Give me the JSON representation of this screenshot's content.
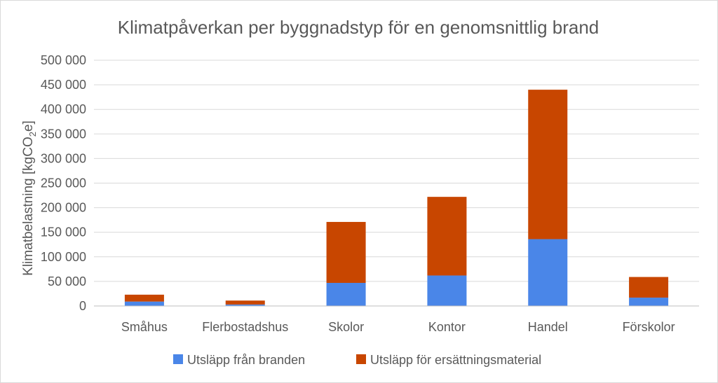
{
  "chart_data": {
    "type": "bar",
    "stacked": true,
    "title": "Klimatpåverkan per byggnadstyp för en genomsnittlig brand",
    "xlabel": "",
    "ylabel": "Klimatbelastning [kgCO₂e]",
    "ylabel_parts": {
      "before": "Klimatbelastning [kgCO",
      "sub": "2",
      "after": "e]"
    },
    "ylim": [
      0,
      500000
    ],
    "yticks": [
      0,
      50000,
      100000,
      150000,
      200000,
      250000,
      300000,
      350000,
      400000,
      450000,
      500000
    ],
    "ytick_labels": [
      "0",
      "50 000",
      "100 000",
      "150 000",
      "200 000",
      "250 000",
      "300 000",
      "350 000",
      "400 000",
      "450 000",
      "500 000"
    ],
    "categories": [
      "Småhus",
      "Flerbostadshus",
      "Skolor",
      "Kontor",
      "Handel",
      "Förskolor"
    ],
    "series": [
      {
        "name": "Utsläpp från branden",
        "color": "#4a86e8",
        "values": [
          9000,
          3000,
          47000,
          62000,
          136000,
          17000
        ]
      },
      {
        "name": "Utsläpp för ersättningsmaterial",
        "color": "#c84600",
        "values": [
          14000,
          8000,
          124000,
          160000,
          304000,
          42000
        ]
      }
    ],
    "grid": true,
    "legend_position": "bottom"
  }
}
